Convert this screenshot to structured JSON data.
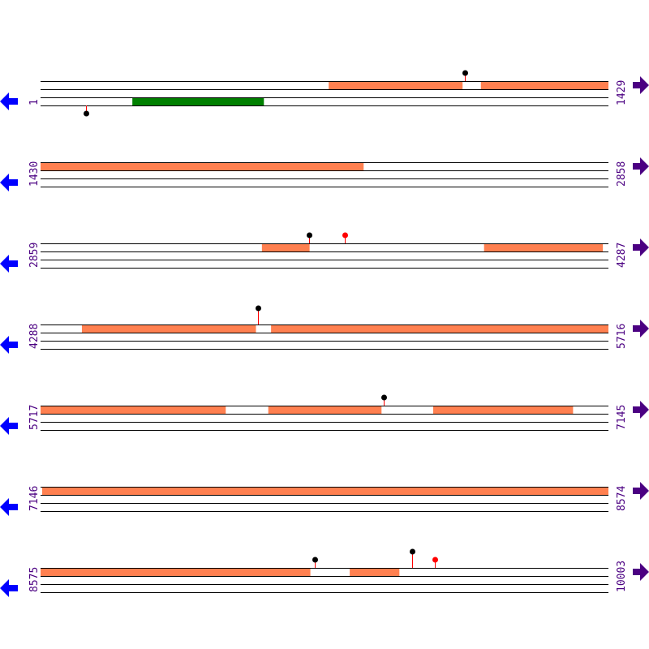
{
  "colors": {
    "track_line": "#000000",
    "forward_feature": "#ff8050",
    "reverse_feature": "#008000",
    "left_arrow": "#0000ff",
    "right_arrow": "#4b0082",
    "label": "#4b0082",
    "stem": "#ff0000",
    "marker_black": "#000000",
    "marker_red": "#ff0000"
  },
  "icons": {
    "left": "arrow-left-icon",
    "right": "arrow-right-icon"
  },
  "rows": [
    {
      "start": "1",
      "end": "1429",
      "s": 1,
      "e": 1429,
      "features": [
        {
          "strand": "+",
          "from": 726,
          "to": 1062
        },
        {
          "strand": "+",
          "from": 1109,
          "to": 1429
        },
        {
          "strand": "-",
          "from": 232,
          "to": 562
        }
      ],
      "markers": [
        {
          "pos": 1068,
          "side": "top",
          "level": 1,
          "color": "black"
        },
        {
          "pos": 115,
          "side": "bottom",
          "level": 1,
          "color": "black"
        }
      ]
    },
    {
      "start": "1430",
      "end": "2858",
      "s": 1430,
      "e": 2858,
      "features": [
        {
          "strand": "+",
          "from": 1430,
          "to": 2242
        }
      ],
      "markers": []
    },
    {
      "start": "2859",
      "end": "4287",
      "s": 2859,
      "e": 4287,
      "features": [
        {
          "strand": "+",
          "from": 3416,
          "to": 3535
        },
        {
          "strand": "+",
          "from": 3975,
          "to": 4273
        }
      ],
      "markers": [
        {
          "pos": 3535,
          "side": "top",
          "level": 1,
          "color": "black"
        },
        {
          "pos": 3624,
          "side": "top",
          "level": 1,
          "color": "red"
        }
      ]
    },
    {
      "start": "4288",
      "end": "5716",
      "s": 4288,
      "e": 5716,
      "features": [
        {
          "strand": "+",
          "from": 4392,
          "to": 4829
        },
        {
          "strand": "+",
          "from": 4868,
          "to": 5716
        }
      ],
      "markers": [
        {
          "pos": 4835,
          "side": "top",
          "level": 2,
          "color": "black"
        }
      ]
    },
    {
      "start": "5717",
      "end": "7145",
      "s": 5717,
      "e": 7145,
      "features": [
        {
          "strand": "+",
          "from": 5717,
          "to": 6182
        },
        {
          "strand": "+",
          "from": 6290,
          "to": 6574
        },
        {
          "strand": "+",
          "from": 6705,
          "to": 7056
        }
      ],
      "markers": [
        {
          "pos": 6580,
          "side": "top",
          "level": 1,
          "color": "black"
        }
      ]
    },
    {
      "start": "7146",
      "end": "8574",
      "s": 7146,
      "e": 8574,
      "features": [
        {
          "strand": "+",
          "from": 7150,
          "to": 8574
        }
      ],
      "markers": []
    },
    {
      "start": "8575",
      "end": "10003",
      "s": 8575,
      "e": 10003,
      "features": [
        {
          "strand": "+",
          "from": 8575,
          "to": 9253
        },
        {
          "strand": "+",
          "from": 9353,
          "to": 9477
        }
      ],
      "markers": [
        {
          "pos": 9265,
          "side": "top",
          "level": 1,
          "color": "black"
        },
        {
          "pos": 9510,
          "side": "top",
          "level": 2,
          "color": "black"
        },
        {
          "pos": 9567,
          "side": "top",
          "level": 1,
          "color": "red"
        }
      ]
    }
  ]
}
